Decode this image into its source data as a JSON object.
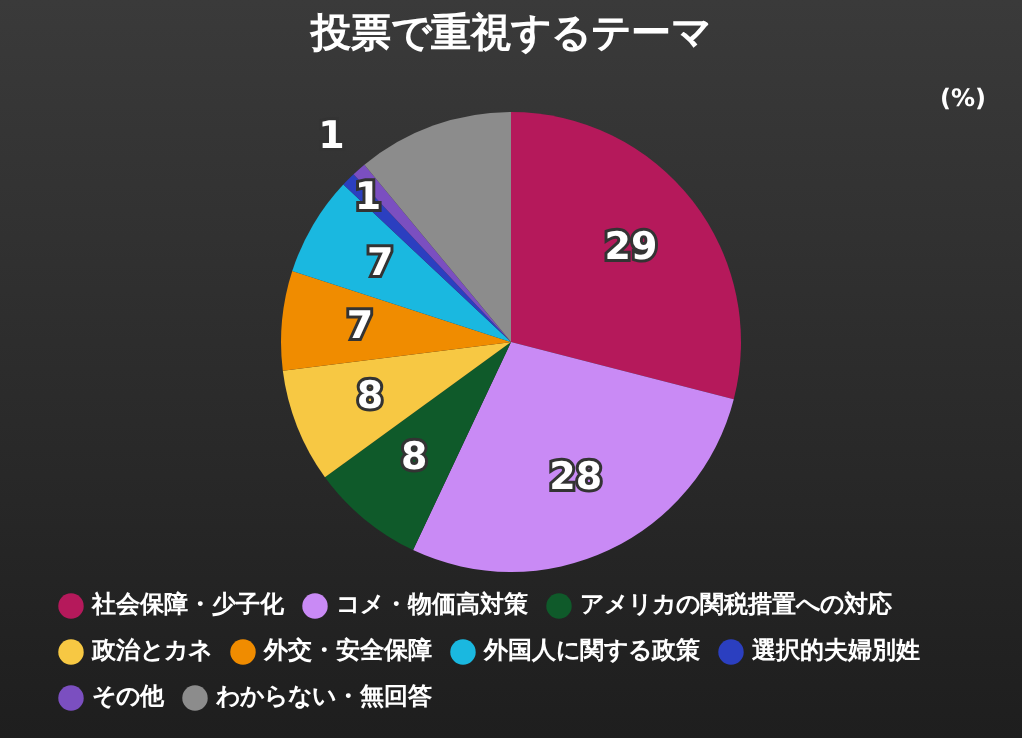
{
  "chart_data": {
    "type": "pie",
    "title": "投票で重視するテーマ",
    "annotations": [
      "(%)"
    ],
    "categories": [
      "社会保障・少子化",
      "コメ・物価高対策",
      "アメリカの関税措置への対応",
      "政治とカネ",
      "外交・安全保障",
      "外国人に関する政策",
      "選択的夫婦別姓",
      "その他",
      "わからない・無回答"
    ],
    "values": [
      29,
      28,
      8,
      8,
      7,
      7,
      1,
      1,
      11
    ],
    "value_labels": [
      "29",
      "28",
      "8",
      "8",
      "7",
      "7",
      "1",
      "1",
      null
    ],
    "colors": [
      "#b5195b",
      "#c98af5",
      "#0f5a2a",
      "#f7c843",
      "#f08c00",
      "#1ab8e0",
      "#2b3fc0",
      "#7b4fc0",
      "#8c8c8c"
    ],
    "legend": "bottom"
  }
}
